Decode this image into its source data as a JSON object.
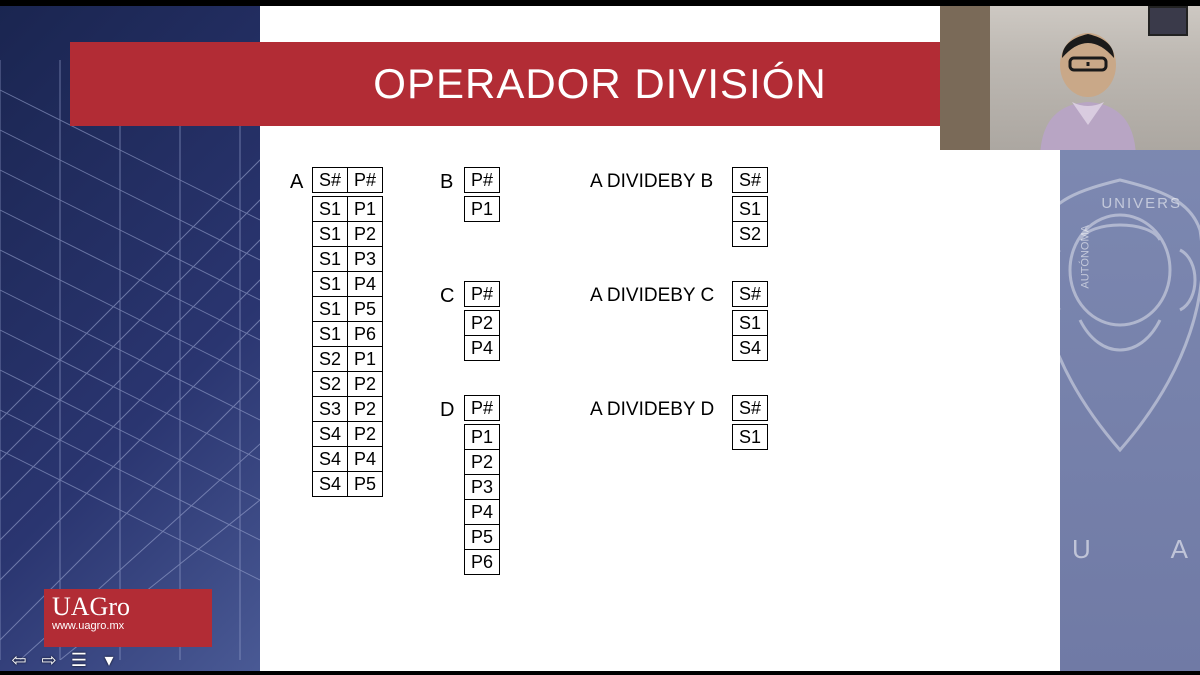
{
  "title": "OPERADOR DIVISIÓN",
  "colors": {
    "title_bar": "#b22c35",
    "title_text": "#ffffff",
    "bg_left_from": "#1a2550",
    "bg_left_to": "#4a5a95",
    "bg_right": "#808cb4",
    "content_bg": "#ffffff",
    "table_border": "#000000"
  },
  "tableA": {
    "label": "A",
    "columns": [
      "S#",
      "P#"
    ],
    "rows": [
      [
        "S1",
        "P1"
      ],
      [
        "S1",
        "P2"
      ],
      [
        "S1",
        "P3"
      ],
      [
        "S1",
        "P4"
      ],
      [
        "S1",
        "P5"
      ],
      [
        "S1",
        "P6"
      ],
      [
        "S2",
        "P1"
      ],
      [
        "S2",
        "P2"
      ],
      [
        "S3",
        "P2"
      ],
      [
        "S4",
        "P2"
      ],
      [
        "S4",
        "P4"
      ],
      [
        "S4",
        "P5"
      ]
    ]
  },
  "tableB": {
    "label": "B",
    "columns": [
      "P#"
    ],
    "rows": [
      [
        "P1"
      ]
    ]
  },
  "tableC": {
    "label": "C",
    "columns": [
      "P#"
    ],
    "rows": [
      [
        "P2"
      ],
      [
        "P4"
      ]
    ]
  },
  "tableD": {
    "label": "D",
    "columns": [
      "P#"
    ],
    "rows": [
      [
        "P1"
      ],
      [
        "P2"
      ],
      [
        "P3"
      ],
      [
        "P4"
      ],
      [
        "P5"
      ],
      [
        "P6"
      ]
    ]
  },
  "resultB": {
    "label": "A DIVIDEBY B",
    "columns": [
      "S#"
    ],
    "rows": [
      [
        "S1"
      ],
      [
        "S2"
      ]
    ]
  },
  "resultC": {
    "label": "A DIVIDEBY C",
    "columns": [
      "S#"
    ],
    "rows": [
      [
        "S1"
      ],
      [
        "S4"
      ]
    ]
  },
  "resultD": {
    "label": "A DIVIDEBY D",
    "columns": [
      "S#"
    ],
    "rows": [
      [
        "S1"
      ]
    ]
  },
  "logo": {
    "main": "UAGro",
    "sub": "www.uagro.mx"
  },
  "nav": {
    "prev": "⇦",
    "next": "⇨",
    "menu": "☰",
    "more": "▾"
  },
  "crest_text": {
    "top": "UNIVERS",
    "left": "AUTÓNOMA",
    "u": "U",
    "a": "A"
  }
}
